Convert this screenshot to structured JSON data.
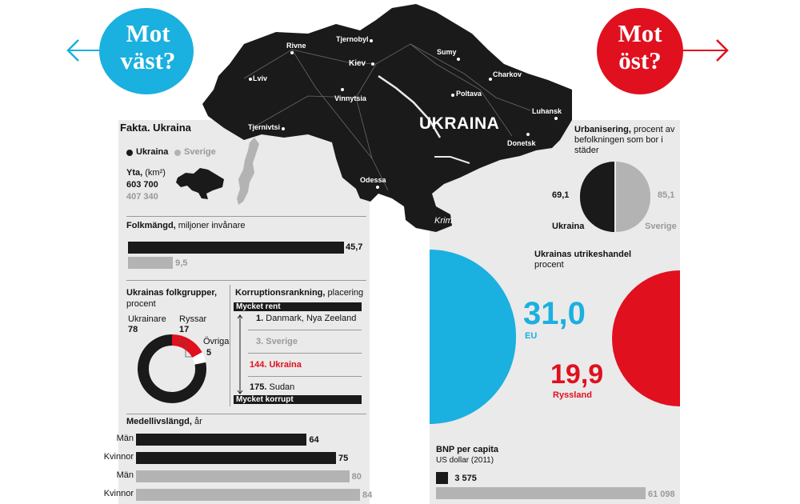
{
  "colors": {
    "blue": "#1ab0e0",
    "red": "#e0101e",
    "black": "#1a1a1a",
    "grey": "#b3b3b3",
    "panel": "#eaeaea"
  },
  "west": {
    "label_line1": "Mot",
    "label_line2": "väst?"
  },
  "east": {
    "label_line1": "Mot",
    "label_line2": "öst?"
  },
  "map": {
    "country": "UKRAINA",
    "region": "Krim",
    "cities": [
      "Tjernobyl",
      "Rivne",
      "Kiev",
      "Sumy",
      "Charkov",
      "Lviv",
      "Vinnytsia",
      "Poltava",
      "Luhansk",
      "Tjernivtsi",
      "Donetsk",
      "Odessa"
    ]
  },
  "facts": {
    "title": "Fakta. Ukraina",
    "legend_ukraina": "Ukraina",
    "legend_sverige": "Sverige",
    "area_label": "Yta,",
    "area_unit": "(km²)",
    "area_ukraina": "603 700",
    "area_sverige": "407 340"
  },
  "population": {
    "label_bold": "Folkmängd,",
    "label_rest": " miljoner invånare",
    "ukraina": 45.7,
    "sverige": 9.5,
    "ukraina_label": "45,7",
    "sverige_label": "9,5"
  },
  "ethnic": {
    "label_bold": "Ukrainas folkgrupper,",
    "label_rest": "procent",
    "ukrainare_label": "Ukrainare",
    "ukrainare_value": "78",
    "ryssar_label": "Ryssar",
    "ryssar_value": "17",
    "ovriga_label": "Övriga",
    "ovriga_value": "5"
  },
  "corruption": {
    "label_bold": "Korruptionsrankning,",
    "label_rest": " placering",
    "top_label": "Mycket rent",
    "bottom_label": "Mycket korrupt",
    "rows": [
      {
        "rank": "1.",
        "name": "Danmark, Nya Zeeland"
      },
      {
        "rank": "3.",
        "name": "Sverige"
      },
      {
        "rank": "144.",
        "name": "Ukraina"
      },
      {
        "rank": "175.",
        "name": "Sudan"
      }
    ]
  },
  "life": {
    "label_bold": "Medellivslängd,",
    "label_rest": " år",
    "rows": [
      {
        "label": "Män",
        "value": 64,
        "value_label": "64"
      },
      {
        "label": "Kvinnor",
        "value": 75,
        "value_label": "75"
      },
      {
        "label": "Män",
        "value": 80,
        "value_label": "80"
      },
      {
        "label": "Kvinnor",
        "value": 84,
        "value_label": "84"
      }
    ]
  },
  "urban": {
    "label_bold": "Urbanisering,",
    "label_rest": " procent av befolkningen som bor i städer",
    "ukraina_value": "69,1",
    "sverige_value": "85,1",
    "ukraina_label": "Ukraina",
    "sverige_label": "Sverige"
  },
  "trade": {
    "label_bold": "Ukrainas utrikeshandel",
    "label_rest": "procent",
    "eu_value": "31,0",
    "eu_label": "EU",
    "ryssland_value": "19,9",
    "ryssland_label": "Ryssland"
  },
  "gdp": {
    "label_bold": "BNP per capita",
    "label_rest": "US dollar (2011)",
    "ukraina": 3575,
    "sverige": 61098,
    "ukraina_label": "3 575",
    "sverige_label": "61 098"
  },
  "chart_data": [
    {
      "type": "bar",
      "title": "Folkmängd, miljoner invånare",
      "categories": [
        "Ukraina",
        "Sverige"
      ],
      "values": [
        45.7,
        9.5
      ]
    },
    {
      "type": "bar",
      "title": "Yta, (km²)",
      "categories": [
        "Ukraina",
        "Sverige"
      ],
      "values": [
        603700,
        407340
      ]
    },
    {
      "type": "pie",
      "title": "Ukrainas folkgrupper, procent",
      "categories": [
        "Ukrainare",
        "Ryssar",
        "Övriga"
      ],
      "values": [
        78,
        17,
        5
      ]
    },
    {
      "type": "table",
      "title": "Korruptionsrankning, placering",
      "categories": [
        "Danmark, Nya Zeeland",
        "Sverige",
        "Ukraina",
        "Sudan"
      ],
      "values": [
        1,
        3,
        144,
        175
      ]
    },
    {
      "type": "bar",
      "title": "Medellivslängd, år",
      "series": [
        {
          "name": "Ukraina",
          "values": [
            64,
            75
          ]
        },
        {
          "name": "Sverige",
          "values": [
            80,
            84
          ]
        }
      ],
      "categories": [
        "Män",
        "Kvinnor"
      ]
    },
    {
      "type": "pie",
      "title": "Urbanisering, procent av befolkningen som bor i städer",
      "categories": [
        "Ukraina",
        "Sverige"
      ],
      "values": [
        69.1,
        85.1
      ]
    },
    {
      "type": "pie",
      "title": "Ukrainas utrikeshandel, procent",
      "categories": [
        "EU",
        "Ryssland"
      ],
      "values": [
        31.0,
        19.9
      ]
    },
    {
      "type": "bar",
      "title": "BNP per capita, US dollar (2011)",
      "categories": [
        "Ukraina",
        "Sverige"
      ],
      "values": [
        3575,
        61098
      ]
    }
  ]
}
